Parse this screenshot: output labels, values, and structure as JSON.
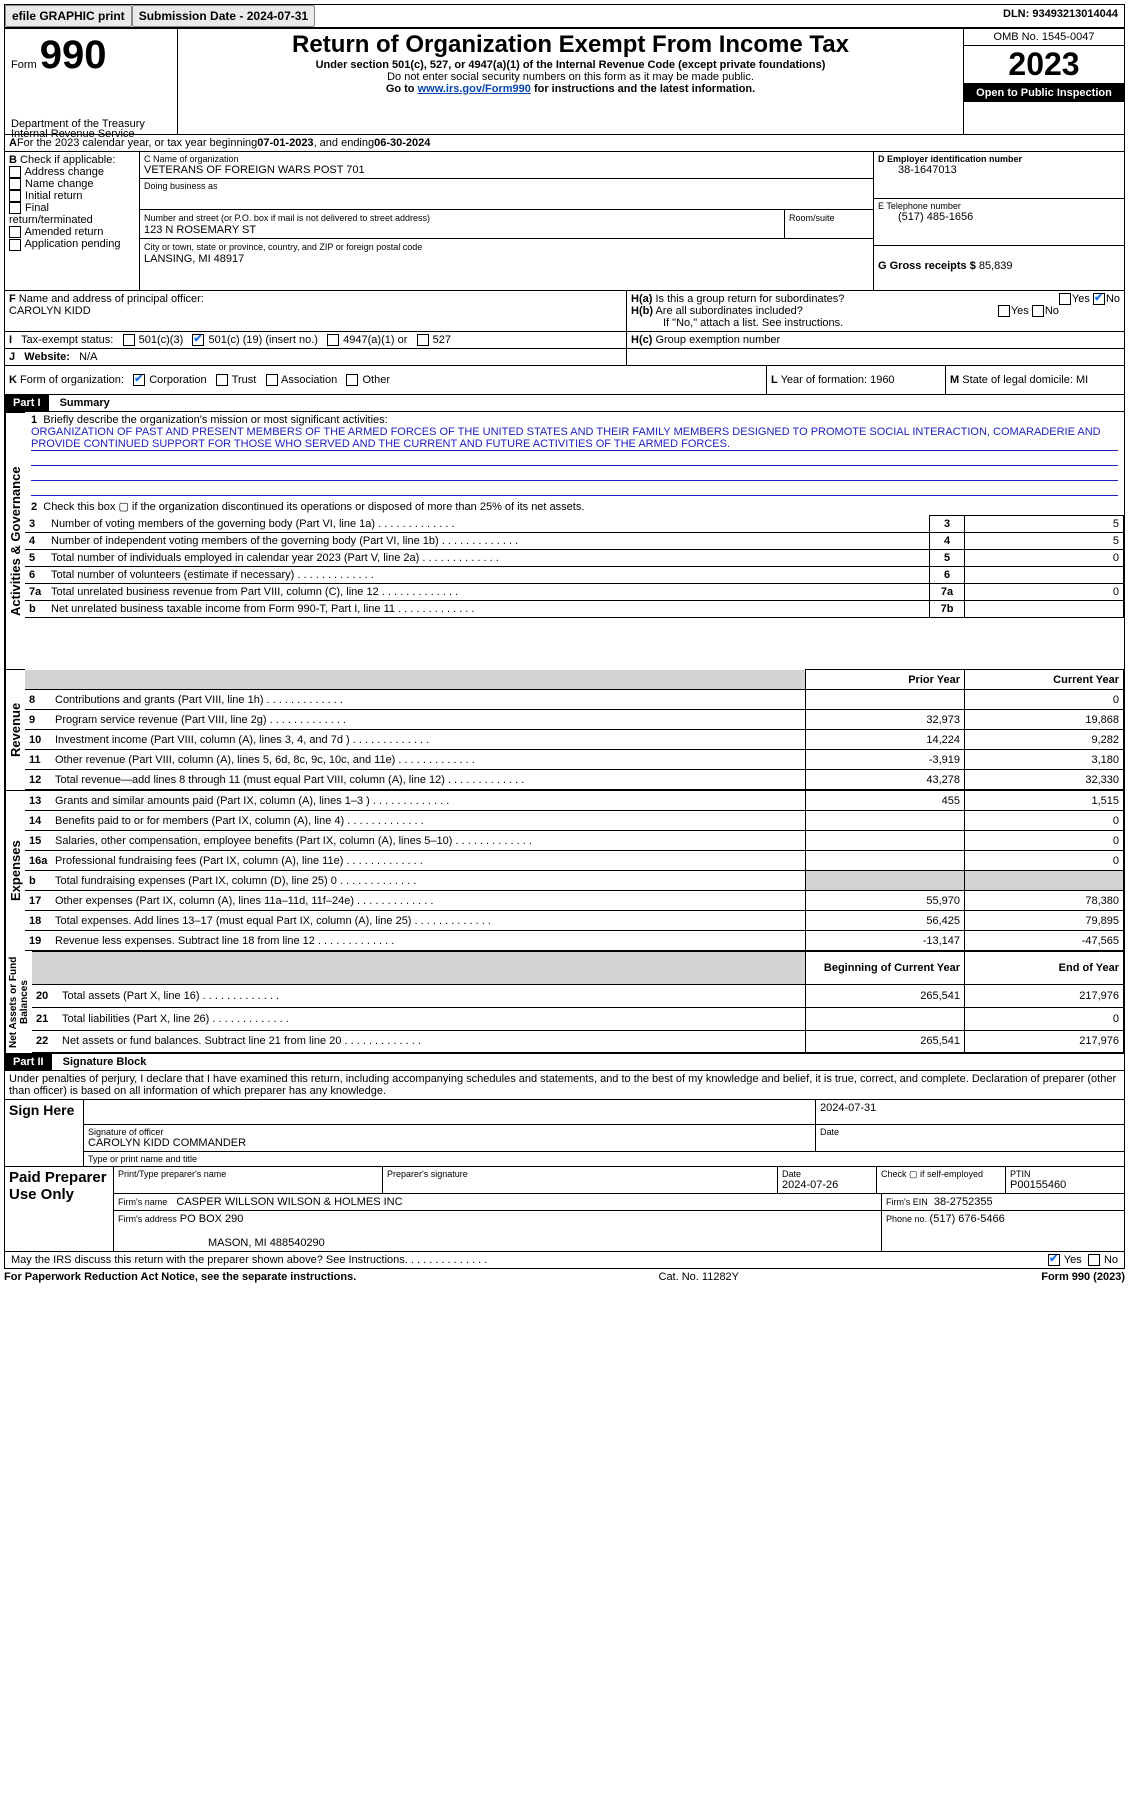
{
  "topbar": {
    "efile": "efile GRAPHIC print",
    "sub_label": "Submission Date - ",
    "sub_date": "2024-07-31",
    "dln_label": "DLN: ",
    "dln": "93493213014044"
  },
  "header": {
    "form_label": "Form",
    "form_num": "990",
    "title": "Return of Organization Exempt From Income Tax",
    "subtitle": "Under section 501(c), 527, or 4947(a)(1) of the Internal Revenue Code (except private foundations)",
    "ssn_note": "Do not enter social security numbers on this form as it may be made public.",
    "goto_pre": "Go to ",
    "goto_link": "www.irs.gov/Form990",
    "goto_post": " for instructions and the latest information.",
    "dept": "Department of the Treasury",
    "irs": "Internal Revenue Service",
    "omb": "OMB No. 1545-0047",
    "year": "2023",
    "open": "Open to Public Inspection"
  },
  "lineA": {
    "a_label": "A",
    "text_pre": " For the 2023 calendar year, or tax year beginning ",
    "begin": "07-01-2023",
    "mid": " , and ending ",
    "end": "06-30-2024"
  },
  "sectionB": {
    "b_label": "B",
    "check_label": " Check if applicable:",
    "opts": [
      "Address change",
      "Name change",
      "Initial return",
      "Final return/terminated",
      "Amended return",
      "Application pending"
    ],
    "c_name_label": "C Name of organization",
    "c_name": "VETERANS OF FOREIGN WARS POST 701",
    "dba_label": "Doing business as",
    "addr_label": "Number and street (or P.O. box if mail is not delivered to street address)",
    "room_label": "Room/suite",
    "addr": "123 N ROSEMARY ST",
    "city_label": "City or town, state or province, country, and ZIP or foreign postal code",
    "city": "LANSING, MI  48917",
    "d_ein_label": "D Employer identification number",
    "d_ein": "38-1647013",
    "e_tel_label": "E Telephone number",
    "e_tel": "(517) 485-1656",
    "g_gross_label": "G Gross receipts $ ",
    "g_gross": "85,839"
  },
  "sectionFH": {
    "f_label": "F",
    "f_text": " Name and address of principal officer:",
    "f_name": "CAROLYN KIDD",
    "ha_label": "H(a)",
    "ha_text": "Is this a group return for subordinates?",
    "hb_label": "H(b)",
    "hb_text": "Are all subordinates included?",
    "hb_note": "If \"No,\" attach a list. See instructions.",
    "hc_label": "H(c)",
    "hc_text": "Group exemption number",
    "ha_no": "No",
    "yes": "Yes",
    "no": "No"
  },
  "sectionI": {
    "i_label": "I",
    "tax_label": "Tax-exempt status:",
    "c3": "501(c)(3)",
    "c_pre": "501(c) (",
    "c_num": "19",
    "c_post": ") (insert no.)",
    "a4947": "4947(a)(1) or",
    "s527": "527"
  },
  "sectionJ": {
    "j_label": "J",
    "web_label": "Website:",
    "web_val": "N/A"
  },
  "sectionK": {
    "k_label": "K",
    "form_org": " Form of organization:",
    "corp": "Corporation",
    "trust": "Trust",
    "assoc": "Association",
    "other": "Other",
    "l_label": "L",
    "l_text": " Year of formation: ",
    "l_val": "1960",
    "m_label": "M",
    "m_text": " State of legal domicile: ",
    "m_val": "MI"
  },
  "part1": {
    "label": "Part I",
    "title": "Summary",
    "sections": {
      "gov": "Activities & Governance",
      "rev": "Revenue",
      "exp": "Expenses",
      "net": "Net Assets or Fund Balances"
    },
    "q1": {
      "num": "1",
      "text": "Briefly describe the organization's mission or most significant activities:",
      "mission": "ORGANIZATION OF PAST AND PRESENT MEMBERS OF THE ARMED FORCES OF THE UNITED STATES AND THEIR FAMILY MEMBERS DESIGNED TO PROMOTE SOCIAL INTERACTION, COMARADERIE AND PROVIDE CONTINUED SUPPORT FOR THOSE WHO SERVED AND THE CURRENT AND FUTURE ACTIVITIES OF THE ARMED FORCES."
    },
    "q2": {
      "num": "2",
      "text": "Check this box ▢ if the organization discontinued its operations or disposed of more than 25% of its net assets."
    },
    "gov_rows": [
      {
        "num": "3",
        "text": "Number of voting members of the governing body (Part VI, line 1a)",
        "box": "3",
        "val": "5"
      },
      {
        "num": "4",
        "text": "Number of independent voting members of the governing body (Part VI, line 1b)",
        "box": "4",
        "val": "5"
      },
      {
        "num": "5",
        "text": "Total number of individuals employed in calendar year 2023 (Part V, line 2a)",
        "box": "5",
        "val": "0"
      },
      {
        "num": "6",
        "text": "Total number of volunteers (estimate if necessary)",
        "box": "6",
        "val": ""
      },
      {
        "num": "7a",
        "text": "Total unrelated business revenue from Part VIII, column (C), line 12",
        "box": "7a",
        "val": "0"
      },
      {
        "num": "b",
        "text": "Net unrelated business taxable income from Form 990-T, Part I, line 11",
        "box": "7b",
        "val": ""
      }
    ],
    "cols": {
      "prior": "Prior Year",
      "current": "Current Year",
      "begin": "Beginning of Current Year",
      "end": "End of Year"
    },
    "rev_rows": [
      {
        "num": "8",
        "text": "Contributions and grants (Part VIII, line 1h)",
        "py": "",
        "cy": "0"
      },
      {
        "num": "9",
        "text": "Program service revenue (Part VIII, line 2g)",
        "py": "32,973",
        "cy": "19,868"
      },
      {
        "num": "10",
        "text": "Investment income (Part VIII, column (A), lines 3, 4, and 7d )",
        "py": "14,224",
        "cy": "9,282"
      },
      {
        "num": "11",
        "text": "Other revenue (Part VIII, column (A), lines 5, 6d, 8c, 9c, 10c, and 11e)",
        "py": "-3,919",
        "cy": "3,180"
      },
      {
        "num": "12",
        "text": "Total revenue—add lines 8 through 11 (must equal Part VIII, column (A), line 12)",
        "py": "43,278",
        "cy": "32,330"
      }
    ],
    "exp_rows": [
      {
        "num": "13",
        "text": "Grants and similar amounts paid (Part IX, column (A), lines 1–3 )",
        "py": "455",
        "cy": "1,515"
      },
      {
        "num": "14",
        "text": "Benefits paid to or for members (Part IX, column (A), line 4)",
        "py": "",
        "cy": "0"
      },
      {
        "num": "15",
        "text": "Salaries, other compensation, employee benefits (Part IX, column (A), lines 5–10)",
        "py": "",
        "cy": "0"
      },
      {
        "num": "16a",
        "text": "Professional fundraising fees (Part IX, column (A), line 11e)",
        "py": "",
        "cy": "0"
      },
      {
        "num": "b",
        "text": "Total fundraising expenses (Part IX, column (D), line 25) 0",
        "py": "gray",
        "cy": "gray"
      },
      {
        "num": "17",
        "text": "Other expenses (Part IX, column (A), lines 11a–11d, 11f–24e)",
        "py": "55,970",
        "cy": "78,380"
      },
      {
        "num": "18",
        "text": "Total expenses. Add lines 13–17 (must equal Part IX, column (A), line 25)",
        "py": "56,425",
        "cy": "79,895"
      },
      {
        "num": "19",
        "text": "Revenue less expenses. Subtract line 18 from line 12",
        "py": "-13,147",
        "cy": "-47,565"
      }
    ],
    "net_rows": [
      {
        "num": "20",
        "text": "Total assets (Part X, line 16)",
        "py": "265,541",
        "cy": "217,976"
      },
      {
        "num": "21",
        "text": "Total liabilities (Part X, line 26)",
        "py": "",
        "cy": "0"
      },
      {
        "num": "22",
        "text": "Net assets or fund balances. Subtract line 21 from line 20",
        "py": "265,541",
        "cy": "217,976"
      }
    ]
  },
  "part2": {
    "label": "Part II",
    "title": "Signature Block",
    "perjury": "Under penalties of perjury, I declare that I have examined this return, including accompanying schedules and statements, and to the best of my knowledge and belief, it is true, correct, and complete. Declaration of preparer (other than officer) is based on all information of which preparer has any knowledge.",
    "sign_here": "Sign Here",
    "sig_officer_label": "Signature of officer",
    "sig_name": "CAROLYN KIDD COMMANDER",
    "type_label": "Type or print name and title",
    "date_label": "Date",
    "sig_date": "2024-07-31",
    "paid": "Paid Preparer Use Only",
    "prep_name_label": "Print/Type preparer's name",
    "prep_sig_label": "Preparer's signature",
    "prep_date": "2024-07-26",
    "check_label": "Check ▢ if self-employed",
    "ptin_label": "PTIN",
    "ptin": "P00155460",
    "firm_name_label": "Firm's name",
    "firm_name": "CASPER WILLSON WILSON & HOLMES INC",
    "firm_ein_label": "Firm's EIN",
    "firm_ein": "38-2752355",
    "firm_addr_label": "Firm's address",
    "firm_addr1": "PO BOX 290",
    "firm_addr2": "MASON, MI  488540290",
    "phone_label": "Phone no. ",
    "phone": "(517) 676-5466",
    "discuss": "May the IRS discuss this return with the preparer shown above? See Instructions.",
    "discuss_yes": "Yes",
    "discuss_no": "No"
  },
  "footer": {
    "paperwork": "For Paperwork Reduction Act Notice, see the separate instructions.",
    "cat": "Cat. No. 11282Y",
    "form": "Form 990 (2023)"
  }
}
